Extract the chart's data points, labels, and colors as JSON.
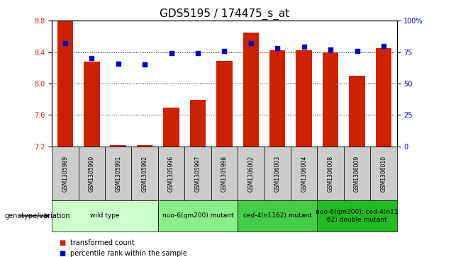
{
  "title": "GDS5195 / 174475_s_at",
  "samples": [
    "GSM1305989",
    "GSM1305990",
    "GSM1305991",
    "GSM1305992",
    "GSM1305996",
    "GSM1305997",
    "GSM1305998",
    "GSM1306002",
    "GSM1306003",
    "GSM1306004",
    "GSM1306008",
    "GSM1306009",
    "GSM1306010"
  ],
  "transformed_count": [
    8.8,
    8.28,
    7.22,
    7.22,
    7.69,
    7.79,
    8.29,
    8.65,
    8.42,
    8.42,
    8.4,
    8.1,
    8.45
  ],
  "percentile_rank": [
    82,
    70,
    66,
    65,
    74,
    74,
    76,
    82,
    78,
    79,
    77,
    76,
    80
  ],
  "ylim_left": [
    7.2,
    8.8
  ],
  "ylim_right": [
    0,
    100
  ],
  "yticks_left": [
    7.2,
    7.6,
    8.0,
    8.4,
    8.8
  ],
  "yticks_right": [
    0,
    25,
    50,
    75,
    100
  ],
  "bar_color": "#cc2200",
  "dot_color": "#0000cc",
  "grid_color": "#000000",
  "groups": [
    {
      "label": "wild type",
      "indices": [
        0,
        1,
        2,
        3
      ],
      "color": "#ccffcc"
    },
    {
      "label": "nuo-6(qm200) mutant",
      "indices": [
        4,
        5,
        6
      ],
      "color": "#88ee88"
    },
    {
      "label": "ced-4(n1162) mutant",
      "indices": [
        7,
        8,
        9
      ],
      "color": "#44cc44"
    },
    {
      "label": "nuo-6(qm200); ced-4(n11\n62) double mutant",
      "indices": [
        10,
        11,
        12
      ],
      "color": "#22bb22"
    }
  ],
  "xlabel_group": "genotype/variation",
  "legend_items": [
    {
      "label": "transformed count",
      "color": "#cc2200"
    },
    {
      "label": "percentile rank within the sample",
      "color": "#0000cc"
    }
  ],
  "bar_width": 0.6,
  "dot_size": 25,
  "header_row_color": "#cccccc",
  "title_fontsize": 11,
  "tick_fontsize": 7,
  "sample_fontsize": 5.5,
  "group_fontsize": 6.5,
  "legend_fontsize": 7
}
